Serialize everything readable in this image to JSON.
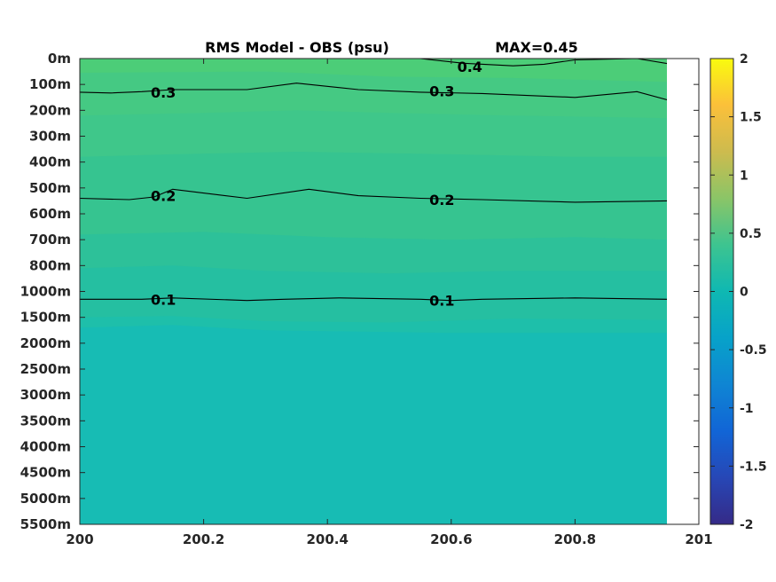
{
  "chart_data": {
    "type": "contour",
    "title": "RMS Model - OBS (psu)",
    "max_label": "MAX=0.45",
    "colormap": "parula",
    "x_ticks": [
      "200",
      "200.2",
      "200.4",
      "200.6",
      "200.8",
      "201"
    ],
    "xlim": [
      200,
      201
    ],
    "x_data_end": 200.95,
    "y_ticks": [
      "0m",
      "100m",
      "200m",
      "300m",
      "400m",
      "500m",
      "600m",
      "700m",
      "800m",
      "1000m",
      "1500m",
      "2000m",
      "2500m",
      "3000m",
      "3500m",
      "4000m",
      "4500m",
      "5000m",
      "5500m"
    ],
    "y_scale": "depth levels (categorical)",
    "colorbar": {
      "ticks": [
        "2",
        "1.5",
        "1",
        "0.5",
        "0",
        "-0.5",
        "-1",
        "-1.5",
        "-2"
      ],
      "range": [
        -2,
        2
      ]
    },
    "fill_bands": [
      {
        "level_from": 0.45,
        "level_to": 0.4,
        "color": "#4ccd78"
      },
      {
        "level_from": 0.4,
        "level_to": 0.3,
        "color": "#45c983"
      },
      {
        "level_from": 0.3,
        "level_to": 0.25,
        "color": "#3fc78a"
      },
      {
        "level_from": 0.25,
        "level_to": 0.2,
        "color": "#36c490"
      },
      {
        "level_from": 0.2,
        "level_to": 0.15,
        "color": "#2dc199"
      },
      {
        "level_from": 0.15,
        "level_to": 0.1,
        "color": "#25bfa1"
      },
      {
        "level_from": 0.1,
        "level_to": 0.05,
        "color": "#1ebfaa"
      },
      {
        "level_from": 0.05,
        "level_to": 0.0,
        "color": "#17bcb4"
      }
    ],
    "contours": [
      {
        "level": 0.4,
        "label": "0.4",
        "x": [
          200.55,
          200.62,
          200.7,
          200.75,
          200.8,
          200.9,
          200.95
        ],
        "depth_index": [
          0.0,
          0.18,
          0.28,
          0.22,
          0.05,
          0.0,
          0.2
        ]
      },
      {
        "level": 0.3,
        "label": "0.3",
        "x": [
          200.0,
          200.05,
          200.1,
          200.15,
          200.27,
          200.35,
          200.45,
          200.55,
          200.65,
          200.8,
          200.9,
          200.95
        ],
        "depth_index": [
          1.3,
          1.33,
          1.28,
          1.2,
          1.2,
          0.95,
          1.2,
          1.3,
          1.35,
          1.5,
          1.28,
          1.6
        ]
      },
      {
        "level": 0.2,
        "label": "0.2",
        "x": [
          200.0,
          200.08,
          200.12,
          200.15,
          200.27,
          200.37,
          200.45,
          200.55,
          200.65,
          200.8,
          200.95
        ],
        "depth_index": [
          5.4,
          5.45,
          5.35,
          5.05,
          5.4,
          5.05,
          5.3,
          5.4,
          5.45,
          5.55,
          5.5
        ]
      },
      {
        "level": 0.1,
        "label": "0.1",
        "x": [
          200.0,
          200.1,
          200.15,
          200.27,
          200.33,
          200.42,
          200.55,
          200.6,
          200.65,
          200.8,
          200.95
        ],
        "depth_index": [
          9.3,
          9.3,
          9.25,
          9.35,
          9.3,
          9.25,
          9.3,
          9.35,
          9.3,
          9.25,
          9.3
        ]
      }
    ],
    "contour_labels": [
      {
        "text": "0.4",
        "x": 200.63,
        "depth_index": 0.3
      },
      {
        "text": "0.3",
        "x": 200.135,
        "depth_index": 1.3
      },
      {
        "text": "0.3",
        "x": 200.585,
        "depth_index": 1.25
      },
      {
        "text": "0.2",
        "x": 200.135,
        "depth_index": 5.3
      },
      {
        "text": "0.2",
        "x": 200.585,
        "depth_index": 5.45
      },
      {
        "text": "0.1",
        "x": 200.135,
        "depth_index": 9.3
      },
      {
        "text": "0.1",
        "x": 200.585,
        "depth_index": 9.35
      }
    ]
  }
}
